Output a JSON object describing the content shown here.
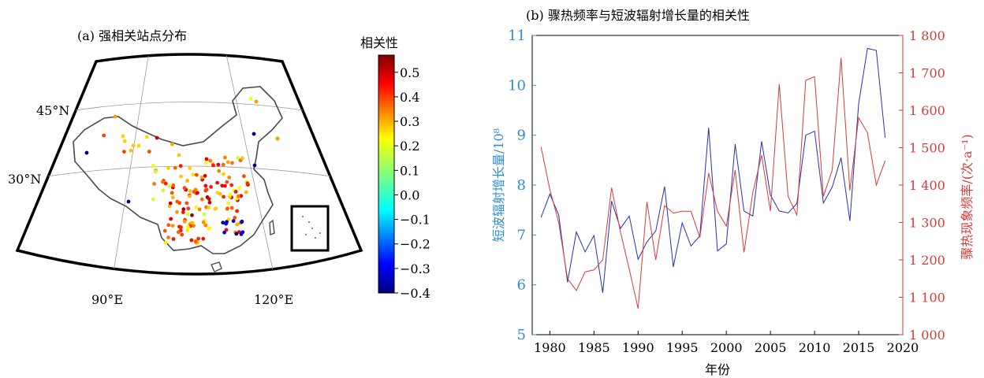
{
  "panel_a": {
    "title": "(a) 强相关站点分布",
    "lat_labels": [
      "45°N",
      "30°N"
    ],
    "lon_labels": [
      "90°E",
      "120°E"
    ],
    "colorbar": {
      "title": "相关性",
      "ticks": [
        "0.5",
        "0.4",
        "0.3",
        "0.2",
        "0.1",
        "0.0",
        "−0.1",
        "−0.2",
        "−0.3",
        "−0.4"
      ],
      "tick_values": [
        0.5,
        0.4,
        0.3,
        0.2,
        0.1,
        0.0,
        -0.1,
        -0.2,
        -0.3,
        -0.4
      ],
      "range": [
        -0.4,
        0.57
      ]
    }
  },
  "chart_data": {
    "type": "line",
    "title": "(b) 骤热频率与短波辐射增长量的相关性",
    "xlabel": "年份",
    "ylabel_left": "短波辐射增长量/10⁸",
    "ylabel_right": "骤热现象频率/(次·a⁻¹)",
    "xlim": [
      1978,
      2020
    ],
    "ylim_left": [
      5,
      11
    ],
    "ylim_right": [
      1000,
      1800
    ],
    "x_ticks": [
      "1980",
      "1985",
      "1990",
      "1995",
      "2000",
      "2005",
      "2010",
      "2015",
      "2020"
    ],
    "y_ticks_left": [
      "5",
      "6",
      "7",
      "8",
      "9",
      "10",
      "11"
    ],
    "y_ticks_right": [
      "1 000",
      "1 100",
      "1 200",
      "1 300",
      "1 400",
      "1 500",
      "1 600",
      "1 700",
      "1 800"
    ],
    "x": [
      1979,
      1980,
      1981,
      1982,
      1983,
      1984,
      1985,
      1986,
      1987,
      1988,
      1989,
      1990,
      1991,
      1992,
      1993,
      1994,
      1995,
      1996,
      1997,
      1998,
      1999,
      2000,
      2001,
      2002,
      2003,
      2004,
      2005,
      2006,
      2007,
      2008,
      2009,
      2010,
      2011,
      2012,
      2013,
      2014,
      2015,
      2016,
      2017,
      2018
    ],
    "series": [
      {
        "axis": "left",
        "color": "#2a2fb0",
        "values": [
          7.35,
          7.82,
          7.4,
          6.05,
          7.06,
          6.66,
          6.99,
          5.84,
          7.68,
          7.13,
          7.38,
          6.51,
          6.86,
          7.08,
          7.97,
          6.36,
          7.24,
          6.78,
          6.98,
          9.15,
          6.68,
          6.82,
          8.82,
          7.48,
          7.38,
          8.88,
          7.8,
          7.48,
          7.44,
          7.63,
          9.0,
          9.08,
          7.64,
          7.96,
          8.55,
          7.28,
          9.63,
          10.74,
          10.7,
          8.95
        ]
      },
      {
        "axis": "right",
        "color": "#d63a3a",
        "values": [
          1502,
          1388,
          1300,
          1150,
          1118,
          1168,
          1173,
          1200,
          1393,
          1275,
          1175,
          1070,
          1355,
          1200,
          1345,
          1325,
          1330,
          1330,
          1260,
          1432,
          1330,
          1290,
          1440,
          1220,
          1380,
          1480,
          1330,
          1670,
          1370,
          1320,
          1680,
          1690,
          1370,
          1440,
          1740,
          1385,
          1580,
          1540,
          1400,
          1465
        ]
      }
    ]
  }
}
